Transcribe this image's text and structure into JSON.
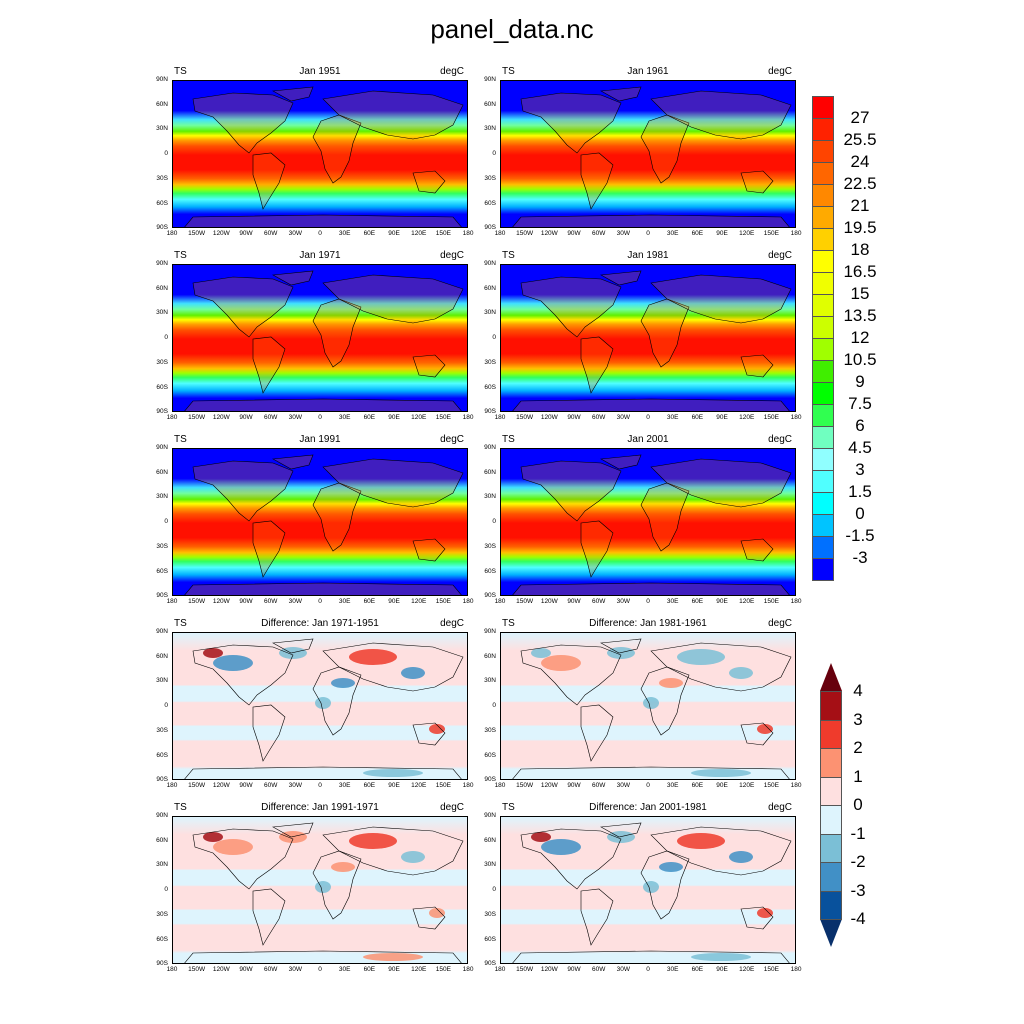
{
  "figure_title": "panel_data.nc",
  "y_ticks": [
    "90N",
    "60N",
    "30N",
    "0",
    "30S",
    "60S",
    "90S"
  ],
  "x_ticks": [
    "180",
    "150W",
    "120W",
    "90W",
    "60W",
    "30W",
    "0",
    "30E",
    "60E",
    "90E",
    "120E",
    "150E",
    "180"
  ],
  "panels": [
    {
      "left": "TS",
      "center": "Jan 1951",
      "right": "degC",
      "kind": "temp"
    },
    {
      "left": "TS",
      "center": "Jan 1961",
      "right": "degC",
      "kind": "temp"
    },
    {
      "left": "TS",
      "center": "Jan 1971",
      "right": "degC",
      "kind": "temp"
    },
    {
      "left": "TS",
      "center": "Jan 1981",
      "right": "degC",
      "kind": "temp"
    },
    {
      "left": "TS",
      "center": "Jan 1991",
      "right": "degC",
      "kind": "temp"
    },
    {
      "left": "TS",
      "center": "Jan 2001",
      "right": "degC",
      "kind": "temp"
    },
    {
      "left": "TS",
      "center": "Difference: Jan 1971-1951",
      "right": "degC",
      "kind": "diff"
    },
    {
      "left": "TS",
      "center": "Difference: Jan 1981-1961",
      "right": "degC",
      "kind": "diff"
    },
    {
      "left": "TS",
      "center": "Difference: Jan 1991-1971",
      "right": "degC",
      "kind": "diff"
    },
    {
      "left": "TS",
      "center": "Difference: Jan 2001-1981",
      "right": "degC",
      "kind": "diff"
    }
  ],
  "temp_colorbar": {
    "labels": [
      "27",
      "25.5",
      "24",
      "22.5",
      "21",
      "19.5",
      "18",
      "16.5",
      "15",
      "13.5",
      "12",
      "10.5",
      "9",
      "7.5",
      "6",
      "4.5",
      "3",
      "1.5",
      "0",
      "-1.5",
      "-3"
    ],
    "colors": [
      "#ff0000",
      "#ff2200",
      "#ff4400",
      "#ff6600",
      "#ff8800",
      "#ffaa00",
      "#ffd000",
      "#ffff00",
      "#f0ff00",
      "#e0ff00",
      "#ccff00",
      "#a0ff00",
      "#40ee00",
      "#00ff00",
      "#30ff50",
      "#70ffc0",
      "#90ffff",
      "#50ffff",
      "#00ffff",
      "#00c4ff",
      "#0070ff",
      "#0000ff"
    ]
  },
  "diff_colorbar": {
    "labels": [
      "4",
      "3",
      "2",
      "1",
      "0",
      "-1",
      "-2",
      "-3",
      "-4"
    ],
    "colors": [
      "#a50f15",
      "#ef3b2c",
      "#fc9272",
      "#fee0e0",
      "#def4fd",
      "#7bbfd6",
      "#4190c6",
      "#08519c"
    ],
    "over_color": "#67000d",
    "under_color": "#08306b"
  }
}
